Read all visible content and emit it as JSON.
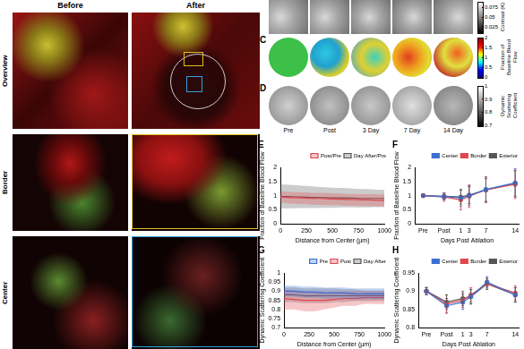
{
  "figure": {
    "columns": [
      "Before",
      "After"
    ],
    "rows": [
      "Overview",
      "Border",
      "Center"
    ],
    "image_rows": [
      {
        "label": "C",
        "colorbar": {
          "label": "Fraction of Baseline Blood Flow",
          "range": [
            0,
            2
          ],
          "ticks": [
            0,
            0.5,
            1,
            1.5,
            2
          ]
        }
      },
      {
        "label": "D",
        "colorbar": {
          "label": "Dynamic Scattering Coefficient",
          "range": [
            0.7,
            1
          ],
          "ticks": [
            0.7,
            0.8,
            0.9,
            1
          ]
        }
      }
    ],
    "contrast_colorbar": {
      "label": "Contrast (K)",
      "range": [
        0.01,
        0.09
      ],
      "ticks": [
        0.025,
        0.05,
        0.075
      ]
    },
    "time_labels": [
      "Pre",
      "Post",
      "3 Day",
      "7 Day",
      "14 Day"
    ]
  },
  "chart_data": [
    {
      "type": "line",
      "title": "E",
      "x_label": "Distance from Center (µm)",
      "y_label": "Fraction of Baseline Blood Flow",
      "x": [
        0,
        100,
        200,
        300,
        400,
        500,
        600,
        700,
        800,
        900,
        1000
      ],
      "xlim": [
        0,
        1000
      ],
      "xticks": [
        0,
        250,
        500,
        750,
        1000
      ],
      "ylim": [
        0,
        2
      ],
      "yticks": [
        0,
        0.5,
        1,
        1.5,
        2
      ],
      "legend": "upper right",
      "series": [
        {
          "name": "Post/Pre",
          "color": "#e0474c",
          "values": [
            0.95,
            0.93,
            0.92,
            0.9,
            0.9,
            0.88,
            0.87,
            0.86,
            0.85,
            0.84,
            0.83
          ],
          "lower": [
            0.75,
            0.72,
            0.7,
            0.68,
            0.67,
            0.66,
            0.65,
            0.64,
            0.63,
            0.62,
            0.62
          ],
          "upper": [
            1.15,
            1.13,
            1.12,
            1.1,
            1.1,
            1.08,
            1.07,
            1.06,
            1.05,
            1.05,
            1.04
          ]
        },
        {
          "name": "Day After/Pre",
          "color": "#555555",
          "values": [
            0.97,
            0.96,
            0.95,
            0.94,
            0.93,
            0.92,
            0.92,
            0.91,
            0.9,
            0.9,
            0.9
          ],
          "lower": [
            0.55,
            0.55,
            0.56,
            0.56,
            0.57,
            0.57,
            0.58,
            0.58,
            0.58,
            0.59,
            0.59
          ],
          "upper": [
            1.4,
            1.38,
            1.35,
            1.33,
            1.3,
            1.28,
            1.27,
            1.25,
            1.23,
            1.22,
            1.2
          ]
        }
      ]
    },
    {
      "type": "line",
      "title": "F",
      "x_label": "Days Post Ablation",
      "y_label": "Fraction of Baseline Blood Flow",
      "x": [
        -8,
        -3,
        1,
        3,
        7,
        14
      ],
      "xlim": [
        -10,
        15
      ],
      "xticks": [
        {
          "value": -8,
          "label": "Pre"
        },
        {
          "value": -3,
          "label": "Post"
        },
        1,
        3,
        7,
        14
      ],
      "ylim": [
        0,
        2
      ],
      "yticks": [
        0,
        0.5,
        1,
        1.5,
        2
      ],
      "legend": "upper right",
      "marker": "circle",
      "series": [
        {
          "name": "Center",
          "color": "#3b6fd4",
          "values": [
            1,
            0.97,
            0.92,
            1.0,
            1.22,
            1.45
          ],
          "error": [
            0.05,
            0.12,
            0.3,
            0.35,
            0.45,
            0.5
          ]
        },
        {
          "name": "Border",
          "color": "#e0474c",
          "values": [
            1,
            0.95,
            0.85,
            0.98,
            1.2,
            1.4
          ],
          "error": [
            0.05,
            0.15,
            0.35,
            0.4,
            0.45,
            0.5
          ]
        },
        {
          "name": "Exterior",
          "color": "#555555",
          "values": [
            1,
            0.98,
            0.95,
            1.02,
            1.2,
            1.43
          ],
          "error": [
            0.05,
            0.1,
            0.25,
            0.3,
            0.4,
            0.45
          ]
        }
      ]
    },
    {
      "type": "line",
      "title": "G",
      "x_label": "Distance from Center (µm)",
      "y_label": "Dynamic Scattering Coefficient",
      "x": [
        0,
        100,
        200,
        300,
        400,
        500,
        600,
        700,
        800,
        900,
        1000
      ],
      "xlim": [
        0,
        1000
      ],
      "xticks": [
        0,
        250,
        500,
        750,
        1000
      ],
      "ylim": [
        0.7,
        1
      ],
      "yticks": [
        0.7,
        0.75,
        0.8,
        0.85,
        0.9,
        0.95,
        1
      ],
      "legend": "upper right",
      "series": [
        {
          "name": "Pre",
          "color": "#3b6fd4",
          "values": [
            0.9,
            0.9,
            0.895,
            0.895,
            0.89,
            0.89,
            0.89,
            0.885,
            0.885,
            0.885,
            0.885
          ],
          "lower": [
            0.87,
            0.87,
            0.865,
            0.865,
            0.86,
            0.86,
            0.86,
            0.855,
            0.855,
            0.855,
            0.855
          ],
          "upper": [
            0.93,
            0.93,
            0.925,
            0.925,
            0.92,
            0.92,
            0.92,
            0.915,
            0.915,
            0.915,
            0.915
          ]
        },
        {
          "name": "Post",
          "color": "#e0474c",
          "values": [
            0.86,
            0.855,
            0.85,
            0.85,
            0.85,
            0.855,
            0.86,
            0.86,
            0.865,
            0.865,
            0.865
          ],
          "lower": [
            0.8,
            0.8,
            0.79,
            0.79,
            0.8,
            0.81,
            0.82,
            0.82,
            0.83,
            0.83,
            0.83
          ],
          "upper": [
            0.91,
            0.905,
            0.9,
            0.9,
            0.9,
            0.9,
            0.9,
            0.9,
            0.9,
            0.9,
            0.9
          ]
        },
        {
          "name": "Day After",
          "color": "#555555",
          "values": [
            0.88,
            0.88,
            0.875,
            0.875,
            0.875,
            0.875,
            0.875,
            0.875,
            0.875,
            0.875,
            0.875
          ],
          "lower": [
            0.84,
            0.84,
            0.835,
            0.835,
            0.835,
            0.84,
            0.84,
            0.845,
            0.845,
            0.845,
            0.845
          ],
          "upper": [
            0.92,
            0.92,
            0.915,
            0.915,
            0.915,
            0.915,
            0.91,
            0.91,
            0.905,
            0.905,
            0.905
          ]
        }
      ]
    },
    {
      "type": "line",
      "title": "H",
      "x_label": "Days Post Ablation",
      "y_label": "Dynamic Scattering Coefficient",
      "x": [
        -8,
        -3,
        1,
        3,
        7,
        14
      ],
      "xlim": [
        -10,
        15
      ],
      "xticks": [
        {
          "value": -8,
          "label": "Pre"
        },
        {
          "value": -3,
          "label": "Post"
        },
        1,
        3,
        7,
        14
      ],
      "ylim": [
        0.8,
        0.95
      ],
      "yticks": [
        0.8,
        0.85,
        0.9,
        0.95
      ],
      "legend": "upper right",
      "marker": "circle",
      "series": [
        {
          "name": "Center",
          "color": "#3b6fd4",
          "values": [
            0.9,
            0.86,
            0.87,
            0.885,
            0.925,
            0.89
          ],
          "error": [
            0.01,
            0.02,
            0.02,
            0.02,
            0.015,
            0.02
          ]
        },
        {
          "name": "Border",
          "color": "#e0474c",
          "values": [
            0.9,
            0.865,
            0.875,
            0.89,
            0.92,
            0.895
          ],
          "error": [
            0.01,
            0.025,
            0.02,
            0.02,
            0.015,
            0.02
          ]
        },
        {
          "name": "Exterior",
          "color": "#555555",
          "values": [
            0.9,
            0.87,
            0.88,
            0.885,
            0.92,
            0.89
          ],
          "error": [
            0.01,
            0.02,
            0.02,
            0.02,
            0.015,
            0.02
          ]
        }
      ]
    }
  ]
}
